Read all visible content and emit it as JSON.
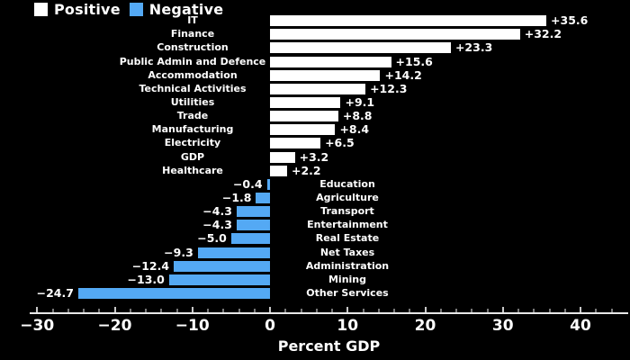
{
  "legend": {
    "positive_label": "Positive",
    "negative_label": "Negative"
  },
  "colors": {
    "background": "#000000",
    "positive_bar": "#ffffff",
    "negative_bar": "#54a9f4",
    "text": "#ffffff",
    "axis_line": "#e8e8e8",
    "major_tick": "#c8c8c8",
    "minor_tick": "#787878"
  },
  "chart_data": {
    "type": "bar",
    "orientation": "horizontal-diverging",
    "title": "",
    "xlabel": "Percent GDP",
    "ylabel": "",
    "xlim": [
      -31,
      46
    ],
    "xticks": [
      -30,
      -20,
      -10,
      0,
      10,
      20,
      30,
      40
    ],
    "minor_tick_step": 2,
    "grid": false,
    "legend_position": "top-left",
    "legend_entries": [
      "Positive",
      "Negative"
    ],
    "categories": [
      "IT",
      "Finance",
      "Construction",
      "Public Admin and Defence",
      "Accommodation",
      "Technical Activities",
      "Utilities",
      "Trade",
      "Manufacturing",
      "Electricity",
      "GDP",
      "Healthcare",
      "Education",
      "Agriculture",
      "Transport",
      "Entertainment",
      "Real Estate",
      "Net Taxes",
      "Administration",
      "Mining",
      "Other Services"
    ],
    "values": [
      35.6,
      32.2,
      23.3,
      15.6,
      14.2,
      12.3,
      9.1,
      8.8,
      8.4,
      6.5,
      3.2,
      2.2,
      -0.4,
      -1.8,
      -4.3,
      -4.3,
      -5.0,
      -9.3,
      -12.4,
      -13.0,
      -24.7
    ]
  }
}
